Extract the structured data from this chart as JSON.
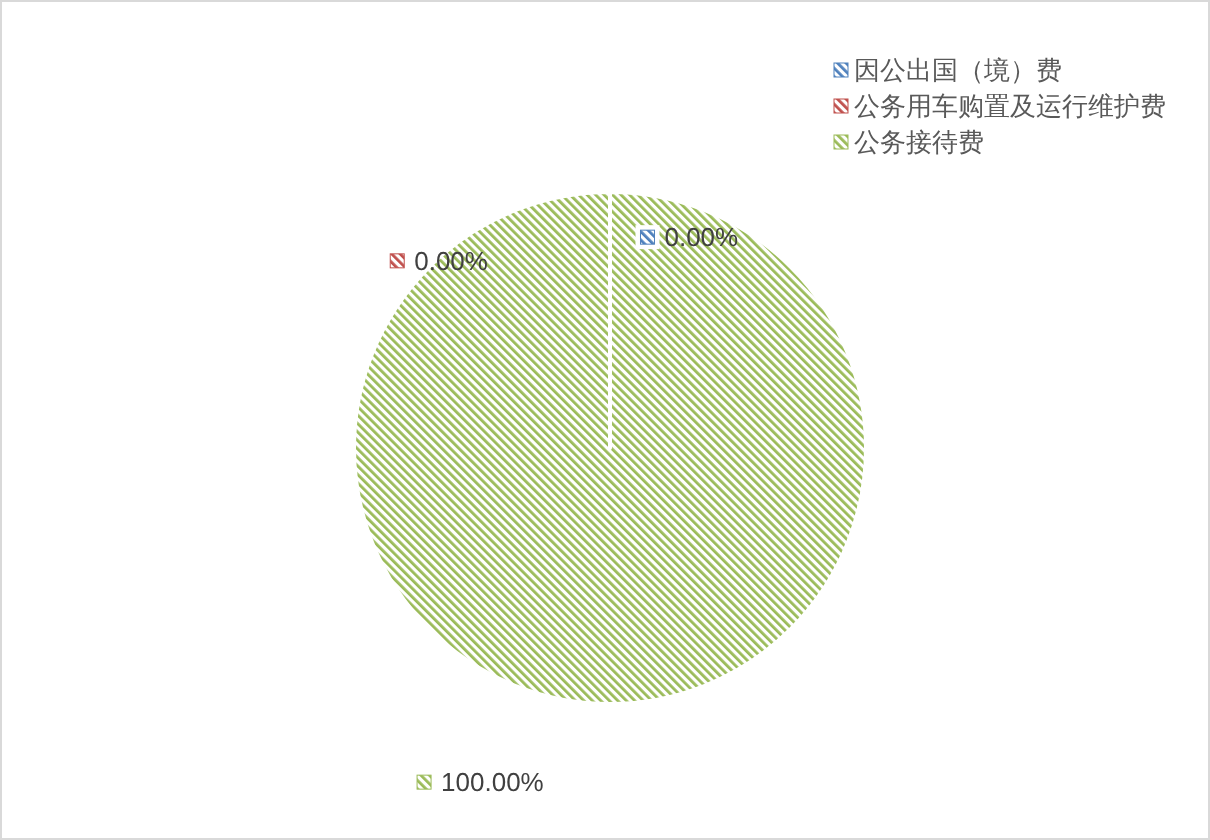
{
  "chart_data": {
    "type": "pie",
    "categories": [
      "因公出国（境）费",
      "公务用车购置及运行维护费",
      "公务接待费"
    ],
    "values": [
      0,
      0,
      100
    ],
    "colors": [
      "#4f81bd",
      "#c0504d",
      "#9bbb59"
    ],
    "value_labels": [
      "0.00%",
      "0.00%",
      "100.00%"
    ],
    "legend": "top right"
  }
}
